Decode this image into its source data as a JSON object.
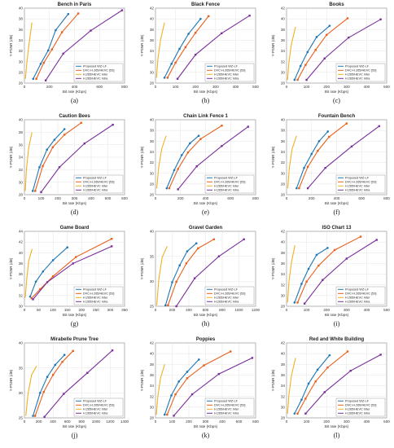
{
  "series_names": [
    "Proposed WZ-LF",
    "DVC-H.265/HEVC [53]",
    "H.265/HEVC Inter",
    "H.265/HEVC Intra"
  ],
  "colors": [
    "#1f77b4",
    "#e8601c",
    "#f2b01e",
    "#7a2f9a"
  ],
  "chart_data": [
    {
      "type": "line",
      "title": "Bench in Paris",
      "xlabel": "Bit rate (Kbps)",
      "ylabel": "Y-PSNR (dB)",
      "label": "(a)",
      "xlim": [
        0,
        800
      ],
      "xticks": [
        0,
        200,
        400,
        600,
        800
      ],
      "ylim": [
        26,
        40
      ],
      "yticks": [
        26,
        28,
        30,
        32,
        34,
        36,
        38,
        40
      ],
      "series": [
        {
          "name": "Proposed WZ-LF",
          "x": [
            70,
            130,
            190,
            250,
            350
          ],
          "y": [
            26.8,
            29.6,
            32.1,
            35.9,
            38.9
          ]
        },
        {
          "name": "DVC-H.265/HEVC [53]",
          "x": [
            95,
            155,
            220,
            300,
            430
          ],
          "y": [
            26.8,
            29.8,
            32.3,
            35.5,
            39.0
          ]
        },
        {
          "name": "H.265/HEVC Inter",
          "x": [
            8,
            18,
            35,
            60
          ],
          "y": [
            26.8,
            29.5,
            33.0,
            37.3
          ]
        },
        {
          "name": "H.265/HEVC Intra",
          "x": [
            170,
            310,
            530,
            780
          ],
          "y": [
            26.5,
            31.5,
            35.8,
            39.6
          ]
        }
      ]
    },
    {
      "type": "line",
      "title": "Black Fence",
      "xlabel": "Bit rate (Kbps)",
      "ylabel": "Y-PSNR (dB)",
      "label": "(b)",
      "xlim": [
        0,
        500
      ],
      "xticks": [
        0,
        100,
        200,
        300,
        400,
        500
      ],
      "ylim": [
        28,
        42
      ],
      "yticks": [
        28,
        30,
        32,
        34,
        36,
        38,
        40,
        42
      ],
      "series": [
        {
          "name": "Proposed WZ-LF",
          "x": [
            45,
            80,
            120,
            165,
            225
          ],
          "y": [
            29.0,
            31.6,
            34.4,
            37.2,
            40.0
          ]
        },
        {
          "name": "DVC-H.265/HEVC [53]",
          "x": [
            60,
            100,
            150,
            200,
            265
          ],
          "y": [
            29.0,
            31.8,
            34.7,
            37.4,
            40.5
          ]
        },
        {
          "name": "H.265/HEVC Inter",
          "x": [
            5,
            12,
            25,
            45
          ],
          "y": [
            29.0,
            32.5,
            36.0,
            39.3
          ]
        },
        {
          "name": "H.265/HEVC Intra",
          "x": [
            110,
            200,
            330,
            470
          ],
          "y": [
            28.8,
            33.3,
            37.3,
            40.6
          ]
        }
      ]
    },
    {
      "type": "line",
      "title": "Books",
      "xlabel": "Bit rate (Kbps)",
      "ylabel": "Y-PSNR (dB)",
      "label": "(c)",
      "xlim": [
        0,
        500
      ],
      "xticks": [
        0,
        100,
        200,
        300,
        400,
        500
      ],
      "ylim": [
        28,
        42
      ],
      "yticks": [
        28,
        30,
        32,
        34,
        36,
        38,
        40,
        42
      ],
      "series": [
        {
          "name": "Proposed WZ-LF",
          "x": [
            40,
            70,
            105,
            150,
            215
          ],
          "y": [
            28.6,
            31.2,
            33.8,
            36.6,
            38.7
          ]
        },
        {
          "name": "DVC-H.265/HEVC [53]",
          "x": [
            55,
            95,
            145,
            200,
            305
          ],
          "y": [
            28.6,
            31.4,
            34.2,
            37.0,
            40.1
          ]
        },
        {
          "name": "H.265/HEVC Inter",
          "x": [
            5,
            12,
            25,
            45
          ],
          "y": [
            28.6,
            32.0,
            35.4,
            38.5
          ]
        },
        {
          "name": "H.265/HEVC Intra",
          "x": [
            100,
            190,
            310,
            470
          ],
          "y": [
            28.6,
            32.6,
            36.5,
            39.9
          ]
        }
      ]
    },
    {
      "type": "line",
      "title": "Caution Bees",
      "xlabel": "Bit rate (Kbps)",
      "ylabel": "Y-PSNR (dB)",
      "label": "(d)",
      "xlim": [
        0,
        600
      ],
      "xticks": [
        0,
        100,
        200,
        300,
        400,
        500,
        600
      ],
      "ylim": [
        28,
        40
      ],
      "yticks": [
        28,
        30,
        32,
        34,
        36,
        38,
        40
      ],
      "series": [
        {
          "name": "Proposed WZ-LF",
          "x": [
            50,
            90,
            135,
            180,
            240
          ],
          "y": [
            28.6,
            32.4,
            35.2,
            36.8,
            38.5
          ]
        },
        {
          "name": "DVC-H.265/HEVC [53]",
          "x": [
            65,
            110,
            170,
            240,
            340
          ],
          "y": [
            28.6,
            32.6,
            35.6,
            37.6,
            39.5
          ]
        },
        {
          "name": "H.265/HEVC Inter",
          "x": [
            5,
            12,
            25,
            45
          ],
          "y": [
            28.6,
            32.0,
            35.4,
            38.0
          ]
        },
        {
          "name": "H.265/HEVC Intra",
          "x": [
            100,
            210,
            360,
            530
          ],
          "y": [
            28.4,
            32.4,
            36.2,
            39.2
          ]
        }
      ]
    },
    {
      "type": "line",
      "title": "Chain Link Fence 1",
      "xlabel": "Bit rate (Kbps)",
      "ylabel": "Y-PSNR (dB)",
      "label": "(e)",
      "xlim": [
        0,
        800
      ],
      "xticks": [
        0,
        200,
        400,
        600,
        800
      ],
      "ylim": [
        26,
        40
      ],
      "yticks": [
        26,
        28,
        30,
        32,
        34,
        36,
        38,
        40
      ],
      "series": [
        {
          "name": "Proposed WZ-LF",
          "x": [
            90,
            150,
            210,
            275,
            345
          ],
          "y": [
            27.2,
            30.6,
            33.4,
            35.6,
            37.0
          ]
        },
        {
          "name": "DVC-H.265/HEVC [53]",
          "x": [
            110,
            180,
            260,
            360,
            530
          ],
          "y": [
            27.2,
            30.8,
            33.9,
            36.4,
            38.9
          ]
        },
        {
          "name": "H.265/HEVC Inter",
          "x": [
            10,
            25,
            50,
            85
          ],
          "y": [
            27.2,
            31.0,
            34.6,
            37.0
          ]
        },
        {
          "name": "H.265/HEVC Intra",
          "x": [
            180,
            330,
            530,
            740
          ],
          "y": [
            27.0,
            31.3,
            35.1,
            38.7
          ]
        }
      ]
    },
    {
      "type": "line",
      "title": "Fountain Bench",
      "xlabel": "Bit rate (Kbps)",
      "ylabel": "Y-PSNR (dB)",
      "label": "(f)",
      "xlim": [
        0,
        800
      ],
      "xticks": [
        0,
        200,
        400,
        600,
        800
      ],
      "ylim": [
        26,
        40
      ],
      "yticks": [
        26,
        28,
        30,
        32,
        34,
        36,
        38,
        40
      ],
      "series": [
        {
          "name": "Proposed WZ-LF",
          "x": [
            80,
            140,
            200,
            260,
            330
          ],
          "y": [
            27.2,
            31.0,
            33.6,
            36.0,
            37.8
          ]
        },
        {
          "name": "DVC-H.265/HEVC [53]",
          "x": [
            100,
            170,
            250,
            340,
            480
          ],
          "y": [
            27.2,
            31.2,
            34.2,
            36.8,
            39.3
          ]
        },
        {
          "name": "H.265/HEVC Inter",
          "x": [
            10,
            22,
            45,
            80
          ],
          "y": [
            27.2,
            31.0,
            34.6,
            37.0
          ]
        },
        {
          "name": "H.265/HEVC Intra",
          "x": [
            170,
            310,
            520,
            740
          ],
          "y": [
            27.2,
            31.0,
            35.0,
            38.8
          ]
        }
      ]
    },
    {
      "type": "line",
      "title": "Game Board",
      "xlabel": "Bit rate (Kbps)",
      "ylabel": "Y-PSNR (dB)",
      "label": "(g)",
      "xlim": [
        0,
        350
      ],
      "xticks": [
        0,
        50,
        100,
        150,
        200,
        250,
        300,
        350
      ],
      "ylim": [
        30,
        44
      ],
      "yticks": [
        30,
        32,
        34,
        36,
        38,
        40,
        42,
        44
      ],
      "series": [
        {
          "name": "Proposed WZ-LF",
          "x": [
            20,
            40,
            65,
            100,
            150
          ],
          "y": [
            31.8,
            34.6,
            36.5,
            38.6,
            41.0
          ]
        },
        {
          "name": "DVC-H.265/HEVC [53]",
          "x": [
            25,
            55,
            100,
            180,
            305
          ],
          "y": [
            31.5,
            33.2,
            35.6,
            39.2,
            42.6
          ]
        },
        {
          "name": "H.265/HEVC Inter",
          "x": [
            3,
            8,
            15,
            27
          ],
          "y": [
            31.6,
            35.0,
            38.5,
            40.7
          ]
        },
        {
          "name": "H.265/HEVC Intra",
          "x": [
            30,
            80,
            170,
            305
          ],
          "y": [
            31.3,
            34.5,
            38.0,
            41.2
          ]
        }
      ]
    },
    {
      "type": "line",
      "title": "Gravel Garden",
      "xlabel": "Bit rate (Kbps)",
      "ylabel": "Y-PSNR (dB)",
      "label": "(h)",
      "xlim": [
        0,
        1200
      ],
      "xticks": [
        0,
        200,
        400,
        600,
        800,
        1000,
        1200
      ],
      "ylim": [
        25,
        40
      ],
      "yticks": [
        25,
        30,
        35,
        40
      ],
      "series": [
        {
          "name": "Proposed WZ-LF",
          "x": [
            120,
            200,
            290,
            380,
            490
          ],
          "y": [
            25.2,
            29.8,
            33.2,
            36.0,
            37.6
          ]
        },
        {
          "name": "DVC-H.265/HEVC [53]",
          "x": [
            150,
            250,
            370,
            510,
            700
          ],
          "y": [
            25.2,
            29.9,
            33.6,
            36.6,
            38.4
          ]
        },
        {
          "name": "H.265/HEVC Inter",
          "x": [
            15,
            40,
            80,
            140
          ],
          "y": [
            25.2,
            30.4,
            34.8,
            37.0
          ]
        },
        {
          "name": "H.265/HEVC Intra",
          "x": [
            250,
            470,
            760,
            1060
          ],
          "y": [
            25.0,
            30.6,
            35.0,
            38.4
          ]
        }
      ]
    },
    {
      "type": "line",
      "title": "ISO Chart 13",
      "xlabel": "Bit rate (Kbps)",
      "ylabel": "Y-PSNR (dB)",
      "label": "(i)",
      "xlim": [
        0,
        500
      ],
      "xticks": [
        0,
        100,
        200,
        300,
        400,
        500
      ],
      "ylim": [
        28,
        42
      ],
      "yticks": [
        28,
        30,
        32,
        34,
        36,
        38,
        40,
        42
      ],
      "series": [
        {
          "name": "Proposed WZ-LF",
          "x": [
            40,
            75,
            110,
            150,
            205
          ],
          "y": [
            28.7,
            32.2,
            35.0,
            37.6,
            38.9
          ]
        },
        {
          "name": "DVC-H.265/HEVC [53]",
          "x": [
            55,
            100,
            160,
            240,
            370
          ],
          "y": [
            28.7,
            32.6,
            35.6,
            38.5,
            41.0
          ]
        },
        {
          "name": "H.265/HEVC Inter",
          "x": [
            5,
            12,
            25,
            42
          ],
          "y": [
            28.7,
            32.6,
            36.3,
            39.4
          ]
        },
        {
          "name": "H.265/HEVC Intra",
          "x": [
            90,
            180,
            300,
            450
          ],
          "y": [
            28.5,
            32.9,
            36.9,
            40.4
          ]
        }
      ]
    },
    {
      "type": "line",
      "title": "Mirabelle Prune Tree",
      "xlabel": "Bit rate (Kbps)",
      "ylabel": "Y-PSNR (dB)",
      "label": "(j)",
      "xlim": [
        0,
        1400
      ],
      "xticks": [
        0,
        200,
        400,
        600,
        800,
        1000,
        1200,
        1400
      ],
      "ylim": [
        25,
        40
      ],
      "yticks": [
        25,
        30,
        35,
        40
      ],
      "series": [
        {
          "name": "Proposed WZ-LF",
          "x": [
            120,
            220,
            320,
            430,
            560
          ],
          "y": [
            25.4,
            30.0,
            33.2,
            35.6,
            37.6
          ]
        },
        {
          "name": "DVC-H.265/HEVC [53]",
          "x": [
            150,
            270,
            400,
            530,
            680
          ],
          "y": [
            25.4,
            30.2,
            33.6,
            36.2,
            38.4
          ]
        },
        {
          "name": "H.265/HEVC Inter",
          "x": [
            20,
            50,
            100,
            170
          ],
          "y": [
            25.4,
            29.8,
            33.6,
            35.4
          ]
        },
        {
          "name": "H.265/HEVC Intra",
          "x": [
            280,
            550,
            880,
            1230
          ],
          "y": [
            25.2,
            29.8,
            34.0,
            38.5
          ]
        }
      ]
    },
    {
      "type": "line",
      "title": "Poppies",
      "xlabel": "Bit rate (Kbps)",
      "ylabel": "Y-PSNR (dB)",
      "label": "(k)",
      "xlim": [
        0,
        600
      ],
      "xticks": [
        0,
        100,
        200,
        300,
        400,
        500,
        600
      ],
      "ylim": [
        28,
        42
      ],
      "yticks": [
        28,
        30,
        32,
        34,
        36,
        38,
        40,
        42
      ],
      "series": [
        {
          "name": "Proposed WZ-LF",
          "x": [
            55,
            95,
            140,
            190,
            260
          ],
          "y": [
            28.6,
            32.2,
            34.8,
            36.6,
            38.9
          ]
        },
        {
          "name": "DVC-H.265/HEVC [53]",
          "x": [
            70,
            120,
            190,
            290,
            450
          ],
          "y": [
            28.6,
            32.4,
            35.4,
            37.8,
            40.4
          ]
        },
        {
          "name": "H.265/HEVC Inter",
          "x": [
            5,
            14,
            30,
            55
          ],
          "y": [
            28.6,
            32.0,
            35.4,
            38.0
          ]
        },
        {
          "name": "H.265/HEVC Intra",
          "x": [
            110,
            220,
            380,
            580
          ],
          "y": [
            28.4,
            32.4,
            36.2,
            39.2
          ]
        }
      ]
    },
    {
      "type": "line",
      "title": "Red and White Building",
      "xlabel": "Bit rate (Kbps)",
      "ylabel": "Y-PSNR (dB)",
      "label": "(l)",
      "xlim": [
        0,
        500
      ],
      "xticks": [
        0,
        100,
        200,
        300,
        400,
        500
      ],
      "ylim": [
        28,
        42
      ],
      "yticks": [
        28,
        30,
        32,
        34,
        36,
        38,
        40,
        42
      ],
      "series": [
        {
          "name": "Proposed WZ-LF",
          "x": [
            40,
            75,
            110,
            155,
            215
          ],
          "y": [
            28.8,
            31.4,
            34.4,
            37.0,
            39.7
          ]
        },
        {
          "name": "DVC-H.265/HEVC [53]",
          "x": [
            55,
            95,
            145,
            205,
            305
          ],
          "y": [
            28.8,
            31.6,
            34.8,
            37.4,
            40.4
          ]
        },
        {
          "name": "H.265/HEVC Inter",
          "x": [
            5,
            12,
            25,
            45
          ],
          "y": [
            28.8,
            32.4,
            36.0,
            39.2
          ]
        },
        {
          "name": "H.265/HEVC Intra",
          "x": [
            95,
            190,
            320,
            470
          ],
          "y": [
            28.8,
            32.8,
            36.8,
            39.8
          ]
        }
      ]
    }
  ]
}
